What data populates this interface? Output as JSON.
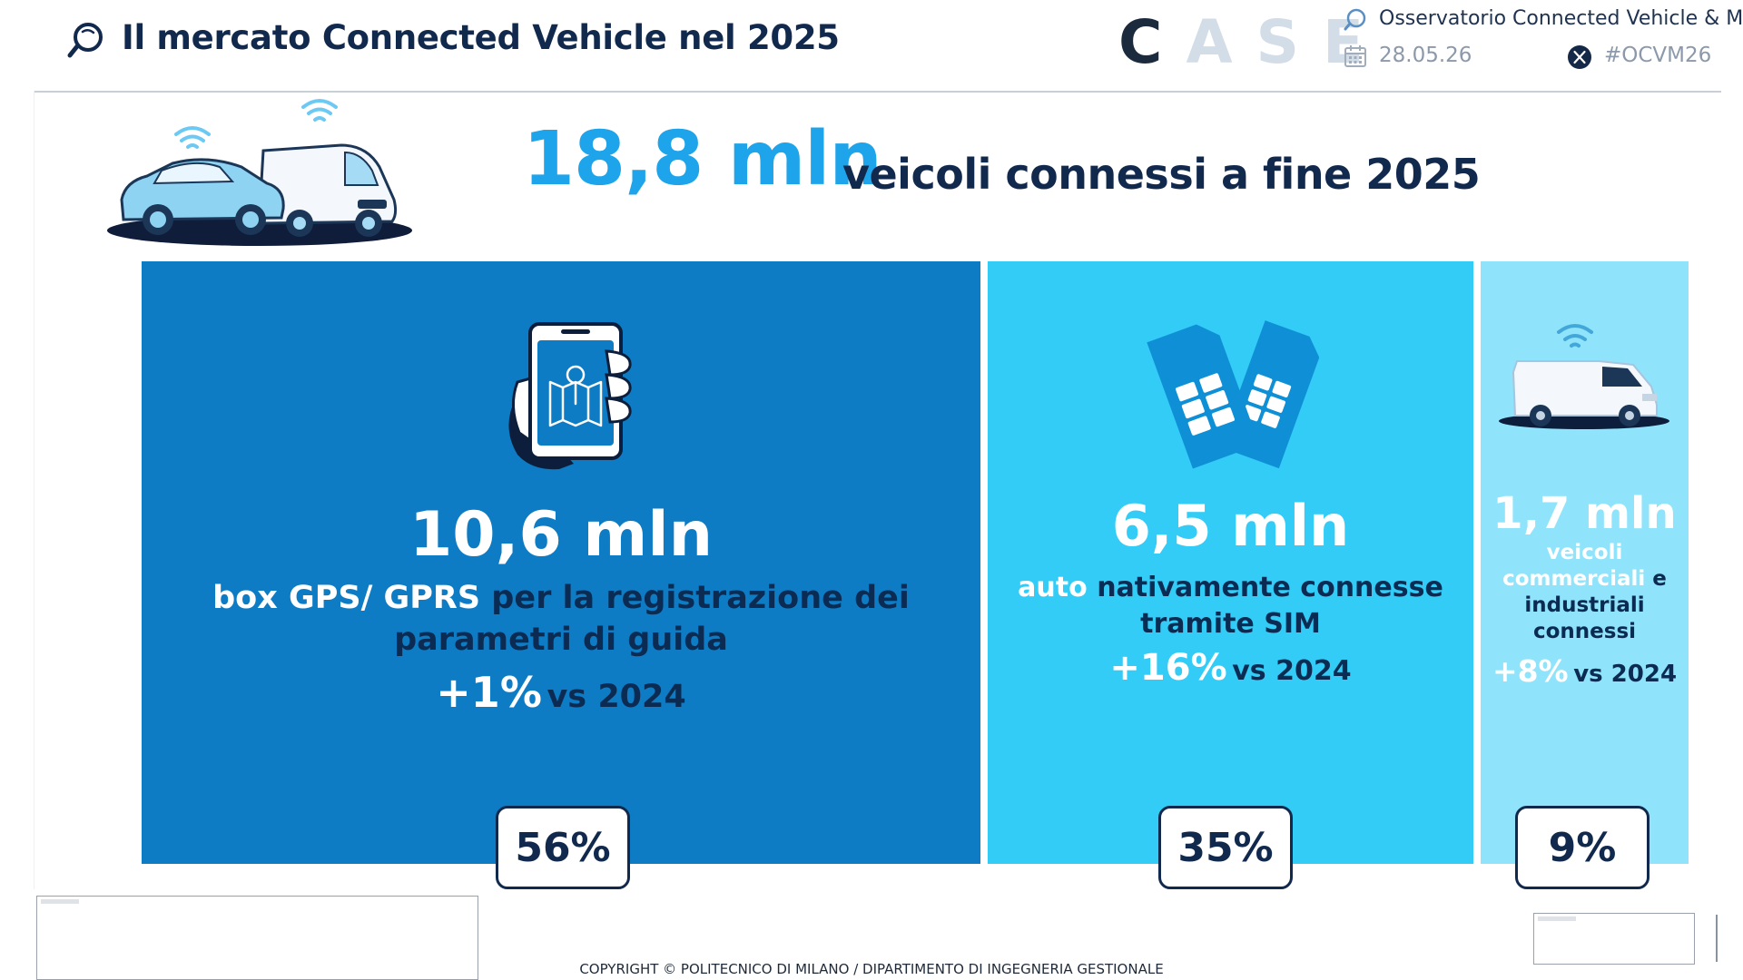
{
  "header": {
    "title": "Il mercato Connected Vehicle nel 2025",
    "logo_text": "CASE",
    "logo_first_letter": "C",
    "logo_rest": "ASE",
    "observatory": "Osservatorio Connected  Vehicle & Mo",
    "date": "28.05.26",
    "hashtag": "#OCVM26",
    "icons": [
      "search-chat-icon",
      "calendar-icon",
      "x-logo-icon"
    ]
  },
  "headline": {
    "value": "18,8 mln",
    "label": "veicoli connessi a fine 2025"
  },
  "segments": {
    "box": {
      "value": "10,6 mln",
      "desc_white": "box GPS/ GPRS",
      "desc_dark": "per la registrazione dei parametri di guida",
      "growth": "+1%",
      "vs": "vs 2024",
      "share": "56%"
    },
    "sim": {
      "value": "6,5 mln",
      "desc_white": "auto",
      "desc_dark": "nativamente connesse tramite SIM",
      "growth": "+16%",
      "vs": "vs 2024",
      "share": "35%"
    },
    "commercial": {
      "value": "1,7 mln",
      "desc_white": "veicoli commerciali",
      "desc_dark": "e industriali connessi",
      "growth": "+8%",
      "vs": "vs 2024",
      "share": "9%"
    }
  },
  "chart_data": {
    "type": "bar",
    "title": "18,8 mln veicoli connessi a fine 2025",
    "total_mln": 18.8,
    "categories": [
      "box GPS/ GPRS",
      "auto nativamente connesse tramite SIM",
      "veicoli commerciali e industriali connessi"
    ],
    "values_mln": [
      10.6,
      6.5,
      1.7
    ],
    "share_pct": [
      56,
      35,
      9
    ],
    "growth_vs_2024_pct": [
      1,
      16,
      8
    ],
    "colors": [
      "#0d7cc4",
      "#33ccf6",
      "#8fe3fa"
    ]
  },
  "footer": {
    "copyright": "COPYRIGHT © POLITECNICO DI MILANO / DIPARTIMENTO DI INGEGNERIA GESTIONALE"
  }
}
